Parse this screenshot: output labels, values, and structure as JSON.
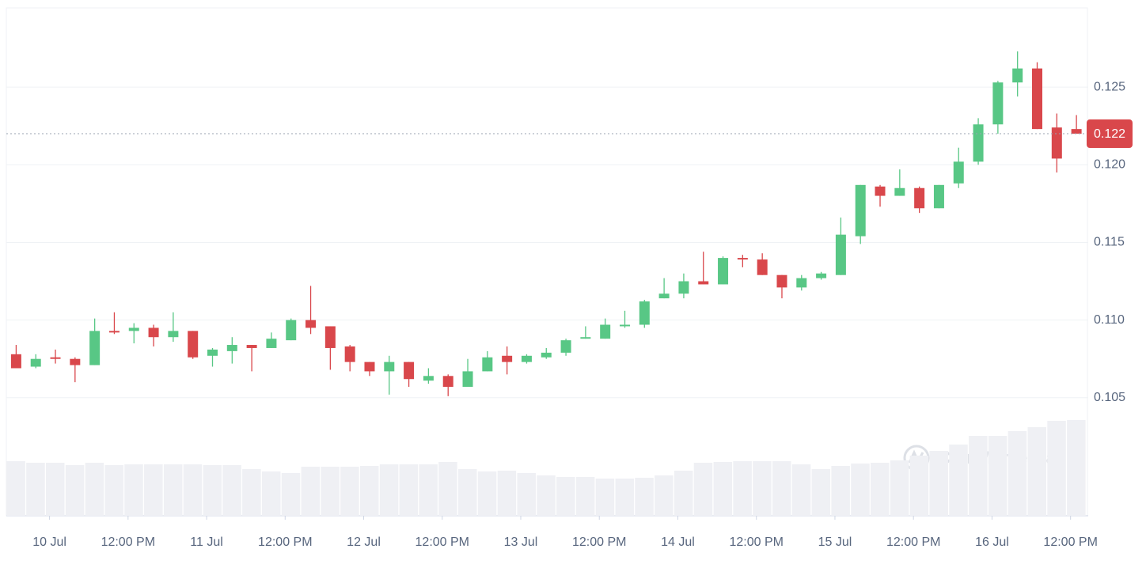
{
  "chart_data": {
    "type": "candlestick",
    "open": [
      0.1078,
      0.107,
      0.1076,
      0.1075,
      0.1071,
      0.1093,
      0.1093,
      0.1095,
      0.1089,
      0.1093,
      0.1077,
      0.108,
      0.1084,
      0.1082,
      0.1087,
      0.11,
      0.1096,
      0.1083,
      0.1073,
      0.1067,
      0.1073,
      0.1061,
      0.1064,
      0.1057,
      0.1067,
      0.1077,
      0.1073,
      0.1076,
      0.1079,
      0.1088,
      0.1088,
      0.1096,
      0.1097,
      0.1114,
      0.1117,
      0.1125,
      0.1123,
      0.114,
      0.1139,
      0.1129,
      0.1121,
      0.1127,
      0.1129,
      0.1154,
      0.1186,
      0.118,
      0.1185,
      0.1172,
      0.1188,
      0.1202,
      0.1226,
      0.1253,
      0.1262,
      0.1224,
      0.1223
    ],
    "high": [
      0.1084,
      0.1078,
      0.1081,
      0.1076,
      0.1101,
      0.1105,
      0.1098,
      0.1097,
      0.1105,
      0.1093,
      0.1082,
      0.1089,
      0.1084,
      0.1092,
      0.1101,
      0.1122,
      0.1096,
      0.1084,
      0.1073,
      0.1077,
      0.1073,
      0.1069,
      0.1065,
      0.1075,
      0.108,
      0.1083,
      0.1078,
      0.1082,
      0.1088,
      0.1096,
      0.1101,
      0.1106,
      0.1113,
      0.1127,
      0.113,
      0.1144,
      0.1141,
      0.1142,
      0.1143,
      0.1129,
      0.1129,
      0.1131,
      0.1166,
      0.1187,
      0.1187,
      0.1197,
      0.1186,
      0.1187,
      0.1211,
      0.123,
      0.1254,
      0.1273,
      0.1266,
      0.1233,
      0.1232
    ],
    "low": [
      0.1069,
      0.1069,
      0.1072,
      0.106,
      0.1071,
      0.1091,
      0.1085,
      0.1083,
      0.1086,
      0.1075,
      0.107,
      0.1072,
      0.1067,
      0.1082,
      0.1087,
      0.1091,
      0.1068,
      0.1067,
      0.1064,
      0.1052,
      0.1057,
      0.1059,
      0.1051,
      0.1057,
      0.1067,
      0.1065,
      0.1072,
      0.1075,
      0.1077,
      0.1088,
      0.1088,
      0.1095,
      0.1095,
      0.1114,
      0.1114,
      0.1123,
      0.1123,
      0.1134,
      0.1129,
      0.1114,
      0.1119,
      0.1126,
      0.1129,
      0.1149,
      0.1173,
      0.118,
      0.1169,
      0.1172,
      0.1185,
      0.12,
      0.122,
      0.1244,
      0.1223,
      0.1195,
      0.122
    ],
    "close": [
      0.1069,
      0.1075,
      0.1075,
      0.1071,
      0.1093,
      0.1092,
      0.1095,
      0.1089,
      0.1093,
      0.1076,
      0.1081,
      0.1084,
      0.1082,
      0.1088,
      0.11,
      0.1095,
      0.1082,
      0.1073,
      0.1067,
      0.1073,
      0.1062,
      0.1064,
      0.1057,
      0.1067,
      0.1076,
      0.1073,
      0.1077,
      0.1079,
      0.1087,
      0.1089,
      0.1097,
      0.1097,
      0.1112,
      0.1117,
      0.1125,
      0.1123,
      0.114,
      0.1139,
      0.1129,
      0.1121,
      0.1127,
      0.113,
      0.1155,
      0.1187,
      0.118,
      0.1185,
      0.1172,
      0.1187,
      0.1202,
      0.1226,
      0.1253,
      0.1262,
      0.1223,
      0.1204,
      0.122
    ],
    "volume": [
      69,
      67,
      67,
      64,
      67,
      64,
      65,
      65,
      65,
      65,
      64,
      64,
      59,
      56,
      54,
      62,
      62,
      62,
      63,
      65,
      65,
      65,
      68,
      59,
      56,
      57,
      54,
      51,
      49,
      49,
      47,
      47,
      48,
      51,
      57,
      67,
      68,
      69,
      69,
      69,
      65,
      59,
      63,
      66,
      67,
      70,
      76,
      82,
      90,
      101,
      101,
      107,
      112,
      120,
      121
    ],
    "up_color": "#58c785",
    "down_color": "#d9474b",
    "volume_color": "#eff0f4",
    "last_price": 0.122,
    "watermark": "CoinMarketCap",
    "xlim": [
      -0.5,
      54.6
    ],
    "xticks": [
      {
        "value": 1.7,
        "label": "10 Jul"
      },
      {
        "value": 5.7,
        "label": "12:00 PM"
      },
      {
        "value": 9.7,
        "label": "11 Jul"
      },
      {
        "value": 13.7,
        "label": "12:00 PM"
      },
      {
        "value": 17.7,
        "label": "12 Jul"
      },
      {
        "value": 21.7,
        "label": "12:00 PM"
      },
      {
        "value": 25.7,
        "label": "13 Jul"
      },
      {
        "value": 29.7,
        "label": "12:00 PM"
      },
      {
        "value": 33.7,
        "label": "14 Jul"
      },
      {
        "value": 37.7,
        "label": "12:00 PM"
      },
      {
        "value": 41.7,
        "label": "15 Jul"
      },
      {
        "value": 45.7,
        "label": "12:00 PM"
      },
      {
        "value": 49.7,
        "label": "16 Jul"
      },
      {
        "value": 53.7,
        "label": "12:00 PM"
      }
    ],
    "ylim": [
      0.0974,
      0.1301
    ],
    "yticks": [
      0.105,
      {
        "value": 0.11,
        "label": "0.110"
      },
      0.115,
      {
        "value": 0.12,
        "label": "0.120"
      },
      0.125
    ],
    "grid": true
  }
}
